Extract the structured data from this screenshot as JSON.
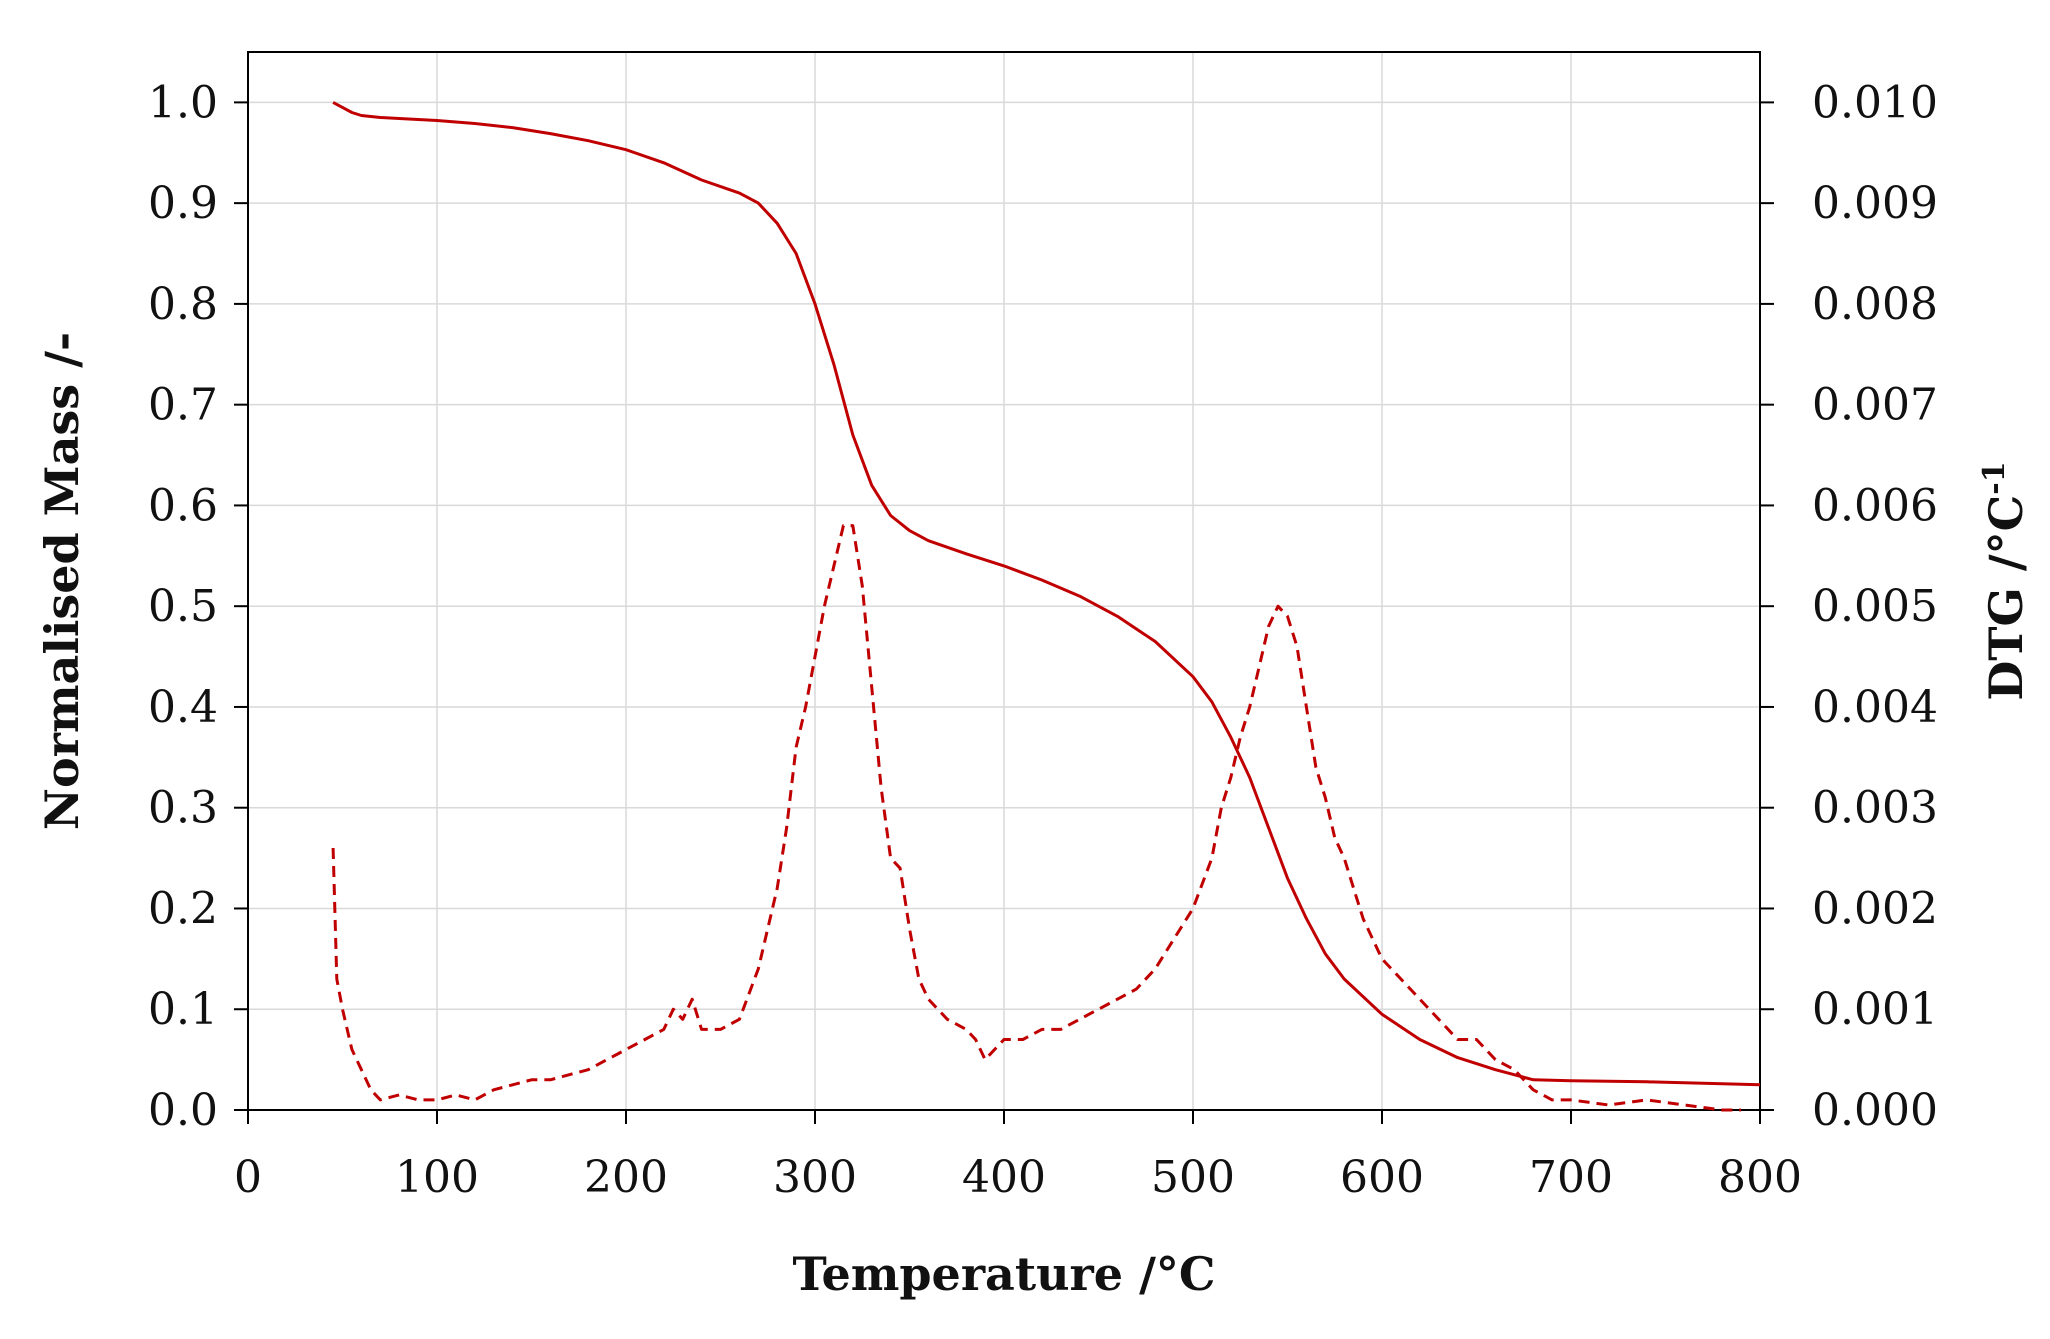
{
  "chart_data": {
    "type": "line",
    "xlabel": "Temperature /°C",
    "ylabel": "Normalised Mass /-",
    "y2label": "DTG  /°C",
    "y2label_sup": "-1",
    "xlim": [
      0,
      800
    ],
    "ylim": [
      0,
      1.05
    ],
    "y2lim": [
      0,
      0.0105
    ],
    "x_ticks": [
      "0",
      "100",
      "200",
      "300",
      "400",
      "500",
      "600",
      "700",
      "800"
    ],
    "y_ticks": [
      "0.0",
      "0.1",
      "0.2",
      "0.3",
      "0.4",
      "0.5",
      "0.6",
      "0.7",
      "0.8",
      "0.9",
      "1.0"
    ],
    "y2_ticks": [
      "0.000",
      "0.001",
      "0.002",
      "0.003",
      "0.004",
      "0.005",
      "0.006",
      "0.007",
      "0.008",
      "0.009",
      "0.010"
    ],
    "grid": true,
    "colors": {
      "series": "#c00000"
    },
    "series": [
      {
        "axis": "left",
        "style": "solid",
        "x": [
          45,
          50,
          55,
          60,
          70,
          80,
          100,
          120,
          140,
          160,
          180,
          200,
          220,
          240,
          260,
          270,
          280,
          290,
          300,
          310,
          320,
          330,
          340,
          350,
          360,
          380,
          400,
          420,
          440,
          460,
          480,
          500,
          510,
          520,
          530,
          540,
          550,
          560,
          570,
          580,
          600,
          620,
          640,
          660,
          680,
          700,
          740,
          800
        ],
        "y": [
          1.0,
          0.995,
          0.99,
          0.987,
          0.985,
          0.984,
          0.982,
          0.979,
          0.975,
          0.969,
          0.962,
          0.953,
          0.94,
          0.923,
          0.91,
          0.9,
          0.88,
          0.85,
          0.8,
          0.74,
          0.67,
          0.62,
          0.59,
          0.575,
          0.565,
          0.552,
          0.54,
          0.526,
          0.51,
          0.49,
          0.465,
          0.43,
          0.405,
          0.37,
          0.33,
          0.28,
          0.23,
          0.19,
          0.155,
          0.13,
          0.095,
          0.07,
          0.052,
          0.04,
          0.03,
          0.029,
          0.028,
          0.025
        ]
      },
      {
        "axis": "right",
        "style": "dashed",
        "x": [
          45,
          47,
          50,
          55,
          60,
          65,
          70,
          80,
          90,
          100,
          110,
          120,
          130,
          140,
          150,
          160,
          170,
          180,
          190,
          200,
          210,
          220,
          225,
          230,
          235,
          240,
          250,
          260,
          270,
          280,
          285,
          290,
          295,
          300,
          305,
          310,
          315,
          320,
          325,
          330,
          335,
          340,
          345,
          350,
          355,
          360,
          370,
          380,
          385,
          390,
          400,
          410,
          420,
          430,
          440,
          450,
          460,
          470,
          480,
          490,
          500,
          510,
          515,
          520,
          525,
          530,
          535,
          540,
          545,
          550,
          555,
          560,
          565,
          570,
          575,
          580,
          585,
          590,
          600,
          610,
          620,
          630,
          640,
          650,
          660,
          670,
          680,
          690,
          700,
          720,
          740,
          760,
          780,
          790
        ],
        "y": [
          0.0026,
          0.0013,
          0.001,
          0.0006,
          0.0004,
          0.0002,
          0.0001,
          0.00015,
          0.0001,
          0.0001,
          0.00015,
          0.0001,
          0.0002,
          0.00025,
          0.0003,
          0.0003,
          0.00035,
          0.0004,
          0.0005,
          0.0006,
          0.0007,
          0.0008,
          0.001,
          0.0009,
          0.0011,
          0.0008,
          0.0008,
          0.0009,
          0.0014,
          0.0022,
          0.0028,
          0.0036,
          0.004,
          0.0045,
          0.005,
          0.0054,
          0.0058,
          0.0058,
          0.0052,
          0.0042,
          0.0032,
          0.0025,
          0.0024,
          0.0018,
          0.0013,
          0.0011,
          0.0009,
          0.0008,
          0.0007,
          0.0005,
          0.0007,
          0.0007,
          0.0008,
          0.0008,
          0.0009,
          0.001,
          0.0011,
          0.0012,
          0.0014,
          0.0017,
          0.002,
          0.0025,
          0.003,
          0.0033,
          0.0037,
          0.004,
          0.0044,
          0.0048,
          0.005,
          0.0049,
          0.0046,
          0.004,
          0.0034,
          0.0031,
          0.0027,
          0.0025,
          0.0022,
          0.0019,
          0.0015,
          0.0013,
          0.0011,
          0.0009,
          0.0007,
          0.0007,
          0.0005,
          0.0004,
          0.0002,
          0.0001,
          0.0001,
          5e-05,
          0.0001,
          5e-05,
          0.0,
          0.0
        ]
      }
    ]
  }
}
